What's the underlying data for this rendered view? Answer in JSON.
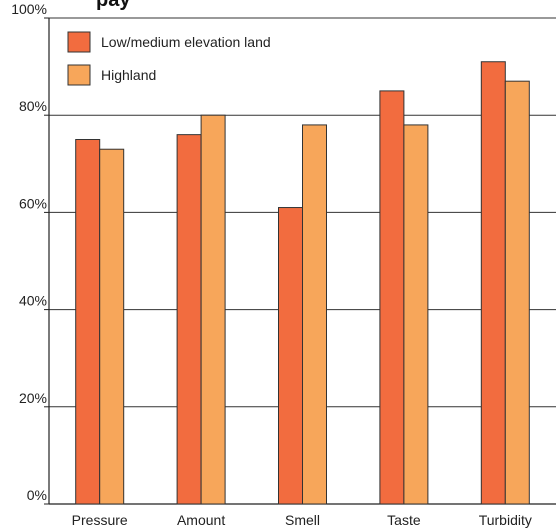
{
  "chart_data": {
    "type": "bar",
    "title_partial": "...",
    "categories": [
      "Pressure",
      "Amount",
      "Smell",
      "Taste",
      "Turbidity"
    ],
    "series": [
      {
        "name": "Low/medium elevation land",
        "values": [
          75,
          76,
          61,
          85,
          91
        ],
        "color": "#F26C3F"
      },
      {
        "name": "Highland",
        "values": [
          73,
          80,
          78,
          78,
          87
        ],
        "color": "#F7A65A"
      }
    ],
    "ylim": [
      0,
      100
    ],
    "yticks": [
      {
        "value": 0,
        "label": "0%"
      },
      {
        "value": 20,
        "label": "20%"
      },
      {
        "value": 40,
        "label": "40%"
      },
      {
        "value": 60,
        "label": "60%"
      },
      {
        "value": 80,
        "label": "80%"
      },
      {
        "value": 100,
        "label": "100%"
      }
    ],
    "grid": true,
    "legend_position": "top-left"
  },
  "title": {
    "visible_text": "pay"
  }
}
